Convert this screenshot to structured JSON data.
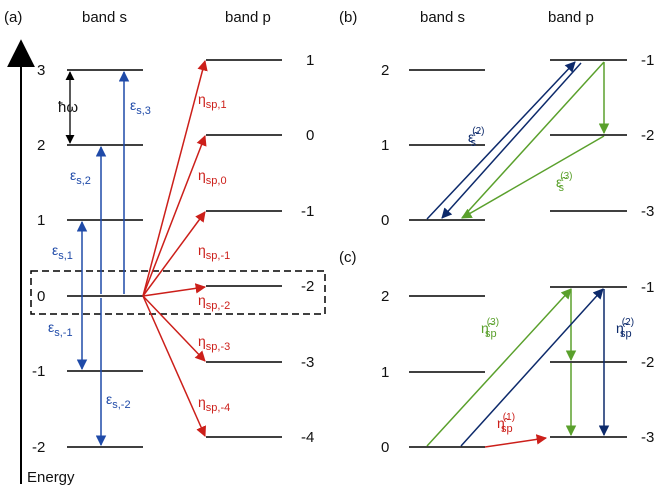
{
  "colors": {
    "blue": "#1f4aa8",
    "dark_blue": "#0d2a6b",
    "red": "#cc1f1a",
    "green": "#5aa02c"
  },
  "panel_a": {
    "tag": "(a)",
    "band_s": "band s",
    "band_p": "band p",
    "axis_label": "Energy",
    "s_levels": [
      "3",
      "2",
      "1",
      "0",
      "-1",
      "-2"
    ],
    "p_levels": [
      "1",
      "0",
      "-1",
      "-2",
      "-3",
      "-4"
    ],
    "hbar_omega": "ħω",
    "eps": {
      "base": "ε",
      "sub": [
        "s,3",
        "s,2",
        "s,1",
        "s,-1",
        "s,-2"
      ]
    },
    "eta": {
      "base": "η",
      "sub": [
        "sp,1",
        "sp,0",
        "sp,-1",
        "sp,-2",
        "sp,-3",
        "sp,-4"
      ]
    }
  },
  "panel_b": {
    "tag": "(b)",
    "band_s": "band s",
    "band_p": "band p",
    "s_levels": [
      "2",
      "1",
      "0"
    ],
    "p_levels": [
      "-1",
      "-2",
      "-3"
    ],
    "eps2": {
      "base": "ε̃",
      "sub": "s",
      "sup": "(2)"
    },
    "eps3": {
      "base": "ε̃",
      "sub": "s",
      "sup": "(3)"
    }
  },
  "panel_c": {
    "tag": "(c)",
    "s_levels": [
      "2",
      "1",
      "0"
    ],
    "p_levels": [
      "-1",
      "-2",
      "-3"
    ],
    "eta3": {
      "base": "η̃",
      "sub": "sp",
      "sup": "(3)"
    },
    "eta2": {
      "base": "η̃",
      "sub": "sp",
      "sup": "(2)"
    },
    "eta1": {
      "base": "η̃",
      "sub": "sp",
      "sup": "(1)"
    }
  }
}
